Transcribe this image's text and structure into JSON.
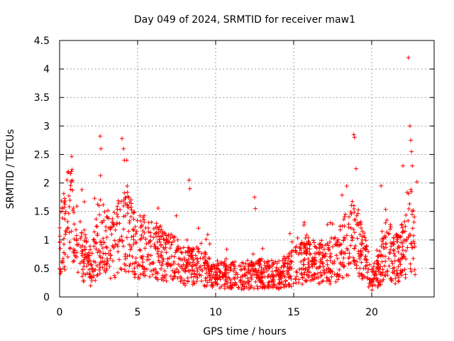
{
  "chart_data": {
    "type": "scatter",
    "title": "Day 049 of 2024, SRMTID for receiver maw1",
    "xlabel": "GPS time / hours",
    "ylabel": "SRMTID / TECUs",
    "xlim": [
      0,
      24
    ],
    "ylim": [
      0,
      4.5
    ],
    "xticks": [
      0,
      5,
      10,
      15,
      20
    ],
    "xtick_labels": [
      "0",
      "5",
      "10",
      "15",
      "20"
    ],
    "yticks": [
      0,
      0.5,
      1,
      1.5,
      2,
      2.5,
      3,
      3.5,
      4,
      4.5
    ],
    "ytick_labels": [
      "0",
      "0.5",
      "1",
      "1.5",
      "2",
      "2.5",
      "3",
      "3.5",
      "4",
      "4.5"
    ],
    "grid": true,
    "marker": "+",
    "color": "#ff0000",
    "envelope": [
      [
        0.0,
        0.9
      ],
      [
        0.5,
        1.4
      ],
      [
        0.8,
        1.6
      ],
      [
        1.0,
        0.9
      ],
      [
        1.5,
        0.8
      ],
      [
        2.0,
        0.45
      ],
      [
        2.5,
        1.1
      ],
      [
        3.0,
        1.0
      ],
      [
        3.5,
        0.85
      ],
      [
        4.0,
        1.3
      ],
      [
        4.5,
        1.1
      ],
      [
        5.0,
        0.9
      ],
      [
        6.0,
        0.85
      ],
      [
        7.0,
        0.75
      ],
      [
        8.0,
        0.55
      ],
      [
        9.0,
        0.55
      ],
      [
        10.0,
        0.4
      ],
      [
        11.0,
        0.38
      ],
      [
        12.0,
        0.38
      ],
      [
        13.0,
        0.42
      ],
      [
        14.0,
        0.4
      ],
      [
        15.0,
        0.55
      ],
      [
        16.0,
        0.7
      ],
      [
        17.0,
        0.55
      ],
      [
        18.0,
        0.8
      ],
      [
        18.8,
        1.15
      ],
      [
        19.5,
        0.75
      ],
      [
        20.0,
        0.3
      ],
      [
        20.5,
        0.55
      ],
      [
        21.0,
        0.9
      ],
      [
        21.5,
        0.65
      ],
      [
        22.0,
        0.9
      ],
      [
        22.5,
        1.05
      ],
      [
        22.8,
        0.9
      ]
    ],
    "spikes": [
      {
        "x": 0.75,
        "y": 2.2
      },
      {
        "x": 2.6,
        "y": 2.82
      },
      {
        "x": 2.65,
        "y": 2.6
      },
      {
        "x": 4.0,
        "y": 2.78
      },
      {
        "x": 4.1,
        "y": 2.6
      },
      {
        "x": 4.15,
        "y": 2.4
      },
      {
        "x": 4.3,
        "y": 2.4
      },
      {
        "x": 8.3,
        "y": 2.05
      },
      {
        "x": 8.35,
        "y": 1.9
      },
      {
        "x": 12.5,
        "y": 1.75
      },
      {
        "x": 12.55,
        "y": 1.55
      },
      {
        "x": 18.85,
        "y": 2.85
      },
      {
        "x": 18.9,
        "y": 2.8
      },
      {
        "x": 19.0,
        "y": 2.25
      },
      {
        "x": 20.6,
        "y": 1.95
      },
      {
        "x": 22.0,
        "y": 2.3
      },
      {
        "x": 22.35,
        "y": 4.2
      },
      {
        "x": 22.45,
        "y": 3.0
      },
      {
        "x": 22.5,
        "y": 2.75
      },
      {
        "x": 22.55,
        "y": 2.55
      },
      {
        "x": 22.6,
        "y": 2.3
      },
      {
        "x": 22.9,
        "y": 2.02
      }
    ]
  }
}
